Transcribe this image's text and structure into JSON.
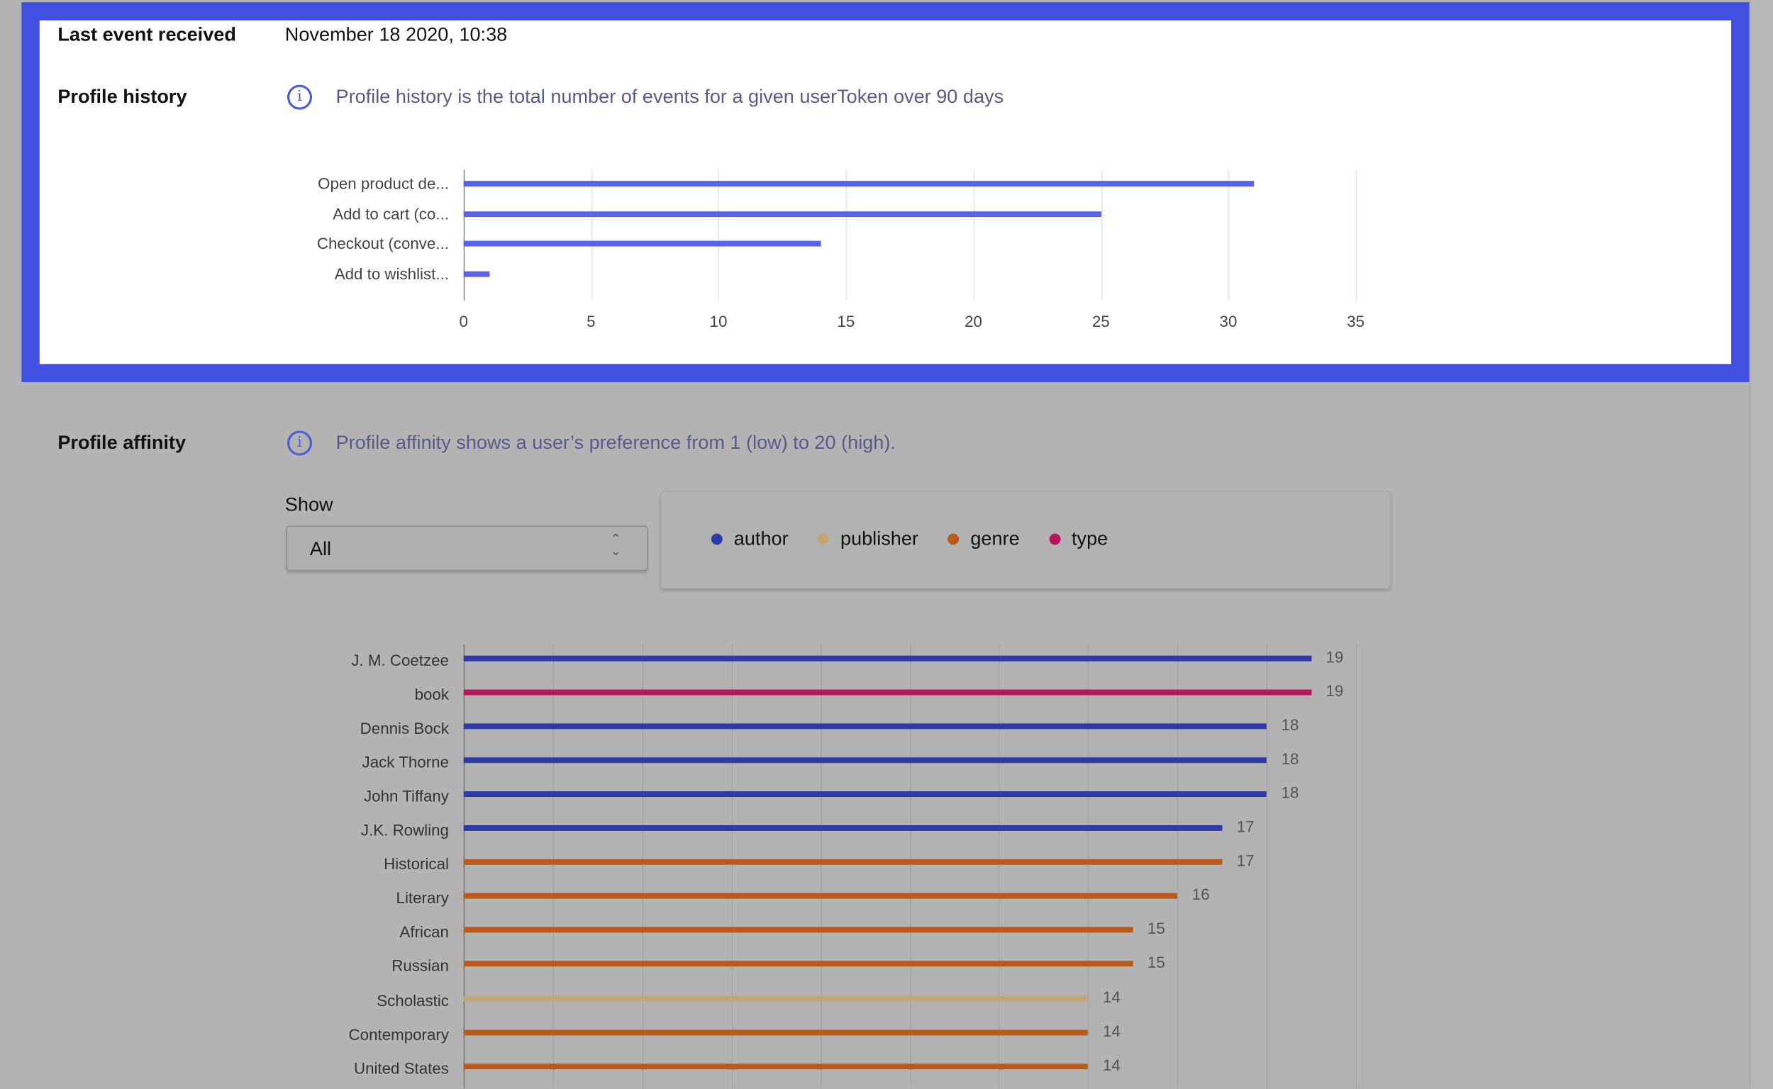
{
  "last_event": {
    "label": "Last event received",
    "value": "November 18 2020, 10:38"
  },
  "profile_history": {
    "label": "Profile history",
    "info": "Profile history is the total number of events for a given userToken over 90 days",
    "chart_data": {
      "type": "bar",
      "orientation": "horizontal",
      "categories": [
        "Open product de...",
        "Add to cart (co...",
        "Checkout (conve...",
        "Add to wishlist..."
      ],
      "values": [
        31,
        25,
        14,
        1
      ],
      "xlim": [
        0,
        35
      ],
      "xticks": [
        "0",
        "5",
        "10",
        "15",
        "20",
        "25",
        "30",
        "35"
      ],
      "grid": true,
      "color": "#5a63e8"
    }
  },
  "profile_affinity": {
    "label": "Profile affinity",
    "info": "Profile affinity shows a user’s preference from 1 (low) to 20 (high).",
    "show_label": "Show",
    "show_value": "All",
    "legend": [
      {
        "name": "author",
        "color": "#2d3aa8"
      },
      {
        "name": "publisher",
        "color": "#c2a573"
      },
      {
        "name": "genre",
        "color": "#b85a1a"
      },
      {
        "name": "type",
        "color": "#b5165c"
      }
    ],
    "chart_data": {
      "type": "bar",
      "orientation": "horizontal",
      "xlim": [
        0,
        20
      ],
      "grid": true,
      "data_labels": true,
      "rows": [
        {
          "label": "J. M. Coetzee",
          "value": 19,
          "series": "author"
        },
        {
          "label": "book",
          "value": 19,
          "series": "type"
        },
        {
          "label": "Dennis Bock",
          "value": 18,
          "series": "author"
        },
        {
          "label": "Jack Thorne",
          "value": 18,
          "series": "author"
        },
        {
          "label": "John Tiffany",
          "value": 18,
          "series": "author"
        },
        {
          "label": "J.K. Rowling",
          "value": 17,
          "series": "author"
        },
        {
          "label": "Historical",
          "value": 17,
          "series": "genre"
        },
        {
          "label": "Literary",
          "value": 16,
          "series": "genre"
        },
        {
          "label": "African",
          "value": 15,
          "series": "genre"
        },
        {
          "label": "Russian",
          "value": 15,
          "series": "genre"
        },
        {
          "label": "Scholastic",
          "value": 14,
          "series": "publisher"
        },
        {
          "label": "Contemporary",
          "value": 14,
          "series": "genre"
        },
        {
          "label": "United States",
          "value": 14,
          "series": "genre"
        }
      ]
    }
  }
}
